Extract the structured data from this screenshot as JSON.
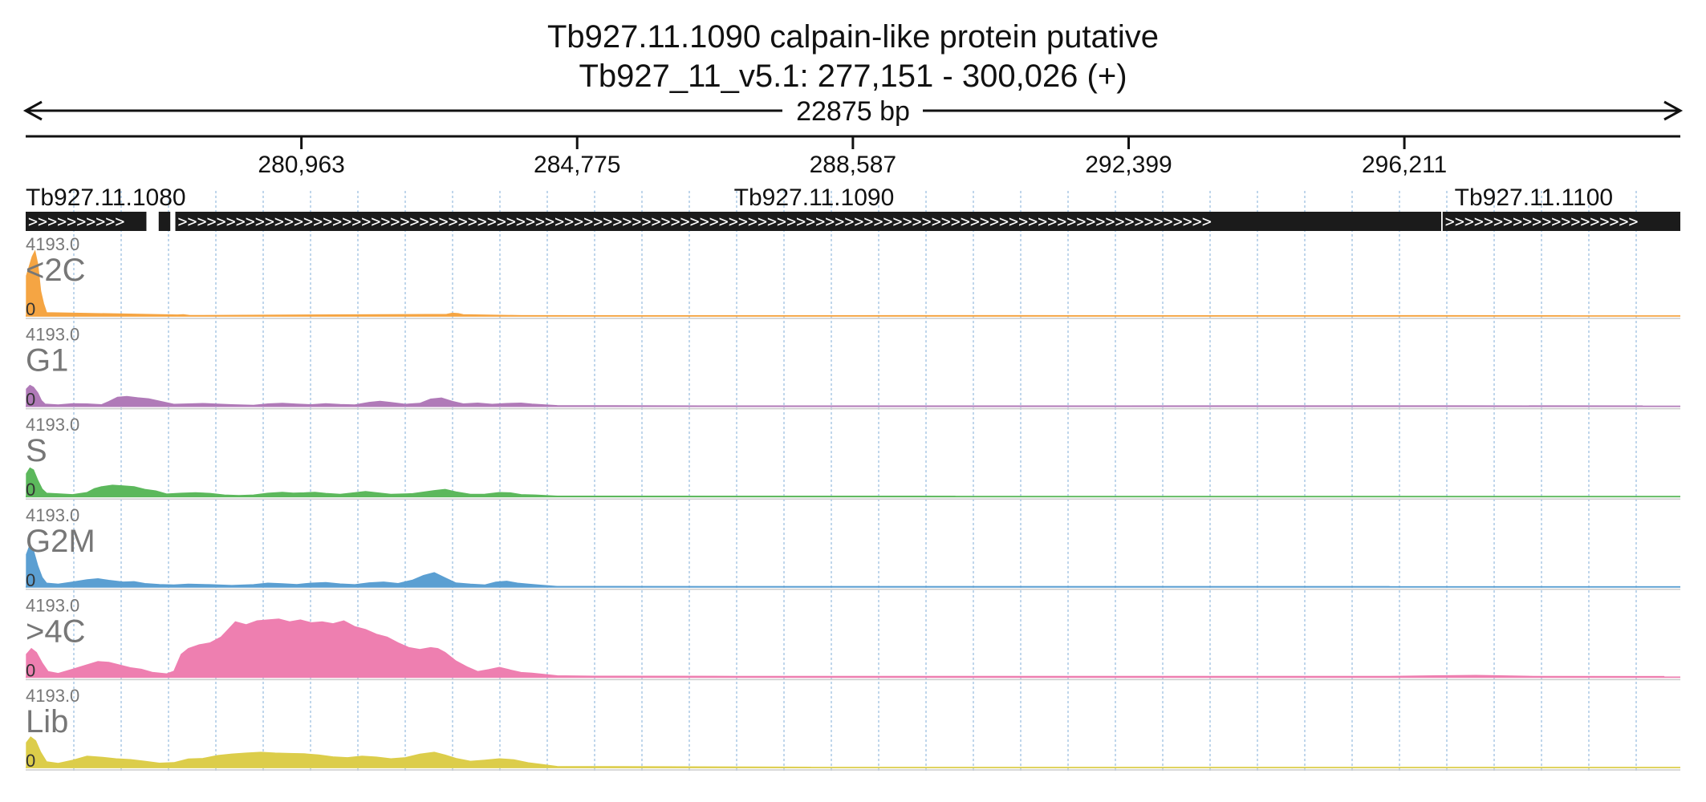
{
  "header": {
    "gene_title": "Tb927.11.1090  calpain-like protein  putative",
    "locus": "Tb927_11_v5.1: 277,151 - 300,026 (+)",
    "span_label": "22875 bp"
  },
  "ruler": {
    "ticks": [
      {
        "pos": 280963,
        "label": "280,963"
      },
      {
        "pos": 284775,
        "label": "284,775"
      },
      {
        "pos": 288587,
        "label": "288,587"
      },
      {
        "pos": 292399,
        "label": "292,399"
      },
      {
        "pos": 296211,
        "label": "296,211"
      }
    ]
  },
  "genes": [
    {
      "name": "Tb927.11.1080",
      "label_pos": 277151,
      "segments": [
        [
          277151,
          278820
        ],
        [
          278990,
          279150
        ]
      ]
    },
    {
      "name": "Tb927.11.1090",
      "label_pos": 288050,
      "segments": [
        [
          279220,
          296720
        ]
      ]
    },
    {
      "name": "Tb927.11.1100",
      "label_pos": 298000,
      "segments": [
        [
          296740,
          300026
        ]
      ]
    }
  ],
  "colors": {
    "<2C": "#f5a543",
    "G1": "#b07ab8",
    "S": "#5cb85c",
    "G2M": "#5b9fd2",
    ">4C": "#ee7fb0",
    "Lib": "#dccd4a",
    "gene_fill": "#1b1b1b",
    "grid": "#9dbfe0"
  },
  "chart_data": {
    "type": "area",
    "title": "Tb927.11.1090  calpain-like protein  putative",
    "xlim": [
      277151,
      300026
    ],
    "ylim": [
      0,
      4193.0
    ],
    "y_max_label": "4193.0",
    "y_min_label": "0",
    "series": [
      {
        "name": "<2C",
        "points": [
          [
            277160,
            2100
          ],
          [
            277200,
            2600
          ],
          [
            277240,
            3100
          ],
          [
            277280,
            3400
          ],
          [
            277320,
            2700
          ],
          [
            277360,
            1300
          ],
          [
            277400,
            650
          ],
          [
            277440,
            180
          ],
          [
            279250,
            60
          ],
          [
            279330,
            70
          ],
          [
            279420,
            30
          ],
          [
            282970,
            90
          ],
          [
            283050,
            150
          ],
          [
            283130,
            130
          ],
          [
            283200,
            70
          ],
          [
            284000,
            25
          ],
          [
            286500,
            20
          ],
          [
            290000,
            25
          ],
          [
            293500,
            20
          ],
          [
            296500,
            25
          ],
          [
            298500,
            20
          ]
        ]
      },
      {
        "name": "G1",
        "points": [
          [
            277160,
            900
          ],
          [
            277210,
            1100
          ],
          [
            277260,
            1000
          ],
          [
            277320,
            700
          ],
          [
            277370,
            300
          ],
          [
            277420,
            120
          ],
          [
            277600,
            80
          ],
          [
            277800,
            140
          ],
          [
            278000,
            130
          ],
          [
            278200,
            90
          ],
          [
            278300,
            250
          ],
          [
            278420,
            480
          ],
          [
            278550,
            520
          ],
          [
            278700,
            450
          ],
          [
            278850,
            400
          ],
          [
            278990,
            280
          ],
          [
            279200,
            110
          ],
          [
            279400,
            130
          ],
          [
            279600,
            150
          ],
          [
            279800,
            120
          ],
          [
            280000,
            90
          ],
          [
            280300,
            60
          ],
          [
            280500,
            130
          ],
          [
            280700,
            160
          ],
          [
            280900,
            120
          ],
          [
            281100,
            90
          ],
          [
            281300,
            140
          ],
          [
            281500,
            100
          ],
          [
            281700,
            80
          ],
          [
            281900,
            210
          ],
          [
            282050,
            270
          ],
          [
            282200,
            200
          ],
          [
            282400,
            110
          ],
          [
            282600,
            160
          ],
          [
            282750,
            380
          ],
          [
            282900,
            440
          ],
          [
            283050,
            260
          ],
          [
            283200,
            130
          ],
          [
            283400,
            170
          ],
          [
            283600,
            110
          ],
          [
            283800,
            150
          ],
          [
            284000,
            170
          ],
          [
            284150,
            120
          ],
          [
            284500,
            40
          ],
          [
            286500,
            25
          ],
          [
            297000,
            30
          ],
          [
            299500,
            25
          ]
        ]
      },
      {
        "name": "S",
        "points": [
          [
            277160,
            1200
          ],
          [
            277210,
            1500
          ],
          [
            277260,
            1400
          ],
          [
            277320,
            850
          ],
          [
            277380,
            400
          ],
          [
            277440,
            180
          ],
          [
            277600,
            150
          ],
          [
            277800,
            110
          ],
          [
            278000,
            220
          ],
          [
            278100,
            420
          ],
          [
            278200,
            520
          ],
          [
            278350,
            600
          ],
          [
            278500,
            560
          ],
          [
            278650,
            520
          ],
          [
            278800,
            380
          ],
          [
            278950,
            300
          ],
          [
            279100,
            140
          ],
          [
            279300,
            180
          ],
          [
            279500,
            210
          ],
          [
            279700,
            170
          ],
          [
            279900,
            90
          ],
          [
            280100,
            60
          ],
          [
            280300,
            90
          ],
          [
            280500,
            180
          ],
          [
            280700,
            230
          ],
          [
            280850,
            190
          ],
          [
            281000,
            200
          ],
          [
            281150,
            230
          ],
          [
            281300,
            170
          ],
          [
            281500,
            120
          ],
          [
            281700,
            210
          ],
          [
            281850,
            270
          ],
          [
            282000,
            210
          ],
          [
            282200,
            120
          ],
          [
            282500,
            160
          ],
          [
            282800,
            320
          ],
          [
            282950,
            380
          ],
          [
            283100,
            250
          ],
          [
            283300,
            120
          ],
          [
            283500,
            130
          ],
          [
            283700,
            220
          ],
          [
            283850,
            200
          ],
          [
            284000,
            110
          ],
          [
            284200,
            90
          ],
          [
            284500,
            30
          ],
          [
            290000,
            20
          ]
        ]
      },
      {
        "name": "G2M",
        "points": [
          [
            277160,
            1700
          ],
          [
            277210,
            2200
          ],
          [
            277260,
            1900
          ],
          [
            277320,
            1100
          ],
          [
            277380,
            500
          ],
          [
            277440,
            200
          ],
          [
            277600,
            150
          ],
          [
            277800,
            260
          ],
          [
            278000,
            380
          ],
          [
            278150,
            430
          ],
          [
            278300,
            350
          ],
          [
            278500,
            260
          ],
          [
            278650,
            280
          ],
          [
            278800,
            180
          ],
          [
            279000,
            130
          ],
          [
            279200,
            110
          ],
          [
            279400,
            150
          ],
          [
            279700,
            120
          ],
          [
            280000,
            80
          ],
          [
            280300,
            120
          ],
          [
            280500,
            200
          ],
          [
            280700,
            170
          ],
          [
            280900,
            130
          ],
          [
            281100,
            200
          ],
          [
            281300,
            230
          ],
          [
            281500,
            160
          ],
          [
            281700,
            120
          ],
          [
            281900,
            220
          ],
          [
            282100,
            260
          ],
          [
            282300,
            180
          ],
          [
            282500,
            360
          ],
          [
            282650,
            600
          ],
          [
            282800,
            750
          ],
          [
            282950,
            480
          ],
          [
            283100,
            210
          ],
          [
            283300,
            150
          ],
          [
            283500,
            110
          ],
          [
            283650,
            250
          ],
          [
            283800,
            300
          ],
          [
            283950,
            200
          ],
          [
            284100,
            150
          ],
          [
            284300,
            90
          ],
          [
            284500,
            30
          ],
          [
            288000,
            20
          ],
          [
            296000,
            20
          ]
        ]
      },
      {
        "name": ">4C",
        "points": [
          [
            277160,
            1200
          ],
          [
            277230,
            1500
          ],
          [
            277300,
            1300
          ],
          [
            277380,
            750
          ],
          [
            277460,
            300
          ],
          [
            277600,
            200
          ],
          [
            277800,
            420
          ],
          [
            278000,
            650
          ],
          [
            278150,
            820
          ],
          [
            278300,
            780
          ],
          [
            278450,
            640
          ],
          [
            278600,
            500
          ],
          [
            278750,
            420
          ],
          [
            278900,
            260
          ],
          [
            279100,
            180
          ],
          [
            279200,
            320
          ],
          [
            279300,
            1200
          ],
          [
            279400,
            1500
          ],
          [
            279550,
            1700
          ],
          [
            279700,
            1800
          ],
          [
            279850,
            2100
          ],
          [
            279950,
            2500
          ],
          [
            280050,
            2900
          ],
          [
            280200,
            2750
          ],
          [
            280350,
            2950
          ],
          [
            280500,
            3000
          ],
          [
            280650,
            3050
          ],
          [
            280800,
            2900
          ],
          [
            280950,
            3000
          ],
          [
            281100,
            2850
          ],
          [
            281250,
            2900
          ],
          [
            281400,
            2800
          ],
          [
            281550,
            2950
          ],
          [
            281700,
            2650
          ],
          [
            281850,
            2500
          ],
          [
            282000,
            2250
          ],
          [
            282150,
            2100
          ],
          [
            282300,
            1800
          ],
          [
            282450,
            1550
          ],
          [
            282600,
            1450
          ],
          [
            282750,
            1550
          ],
          [
            282850,
            1500
          ],
          [
            282950,
            1300
          ],
          [
            283100,
            850
          ],
          [
            283250,
            550
          ],
          [
            283400,
            300
          ],
          [
            283550,
            400
          ],
          [
            283700,
            520
          ],
          [
            283850,
            380
          ],
          [
            284000,
            250
          ],
          [
            284150,
            220
          ],
          [
            284300,
            160
          ],
          [
            284500,
            80
          ],
          [
            285000,
            60
          ],
          [
            287000,
            50
          ],
          [
            290000,
            50
          ],
          [
            293000,
            45
          ],
          [
            296000,
            50
          ],
          [
            297200,
            100
          ],
          [
            298000,
            50
          ],
          [
            299800,
            40
          ]
        ]
      },
      {
        "name": "Lib",
        "points": [
          [
            277160,
            1300
          ],
          [
            277220,
            1600
          ],
          [
            277290,
            1400
          ],
          [
            277360,
            800
          ],
          [
            277440,
            300
          ],
          [
            277600,
            220
          ],
          [
            277800,
            380
          ],
          [
            278000,
            600
          ],
          [
            278200,
            540
          ],
          [
            278400,
            460
          ],
          [
            278600,
            420
          ],
          [
            278800,
            330
          ],
          [
            279000,
            230
          ],
          [
            279200,
            260
          ],
          [
            279400,
            450
          ],
          [
            279600,
            480
          ],
          [
            279800,
            630
          ],
          [
            280000,
            710
          ],
          [
            280200,
            760
          ],
          [
            280400,
            800
          ],
          [
            280600,
            760
          ],
          [
            280800,
            740
          ],
          [
            281000,
            720
          ],
          [
            281200,
            660
          ],
          [
            281400,
            560
          ],
          [
            281600,
            520
          ],
          [
            281800,
            600
          ],
          [
            282000,
            550
          ],
          [
            282200,
            460
          ],
          [
            282400,
            520
          ],
          [
            282600,
            700
          ],
          [
            282800,
            800
          ],
          [
            282950,
            660
          ],
          [
            283100,
            480
          ],
          [
            283300,
            330
          ],
          [
            283500,
            390
          ],
          [
            283700,
            460
          ],
          [
            283900,
            410
          ],
          [
            284100,
            250
          ],
          [
            284300,
            160
          ],
          [
            284500,
            60
          ],
          [
            288000,
            20
          ]
        ]
      }
    ]
  }
}
